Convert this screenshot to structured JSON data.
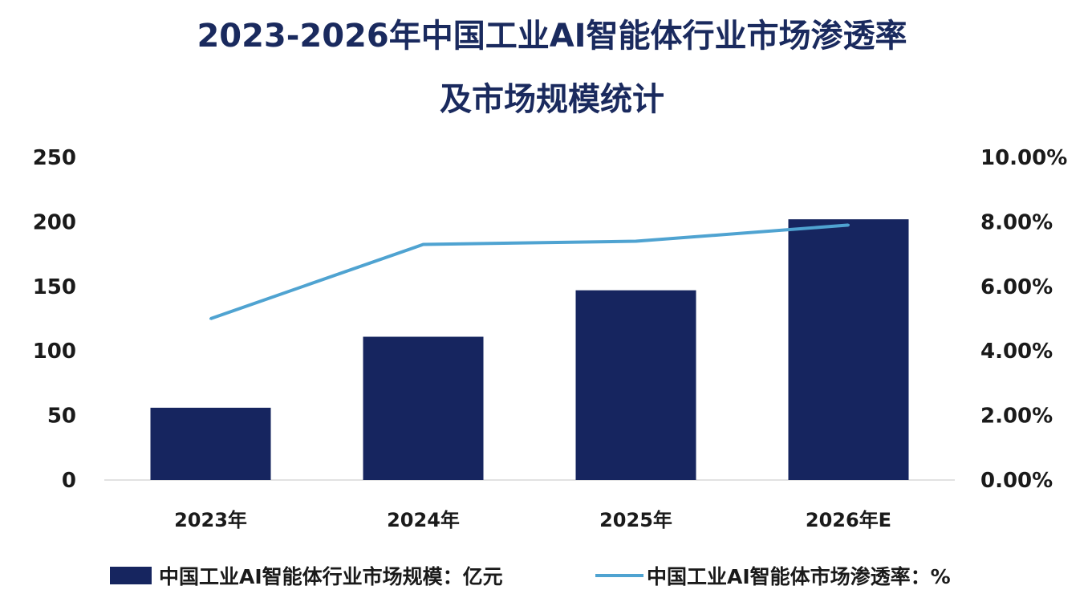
{
  "chart_data": {
    "type": "bar",
    "title_line1": "2023-2026年中国工业AI智能体行业市场渗透率",
    "title_line2": "及市场规模统计",
    "categories": [
      "2023年",
      "2024年",
      "2025年",
      "2026年E"
    ],
    "series": [
      {
        "name": "中国工业AI智能体行业市场规模：亿元",
        "type": "bar",
        "axis": "left",
        "values": [
          56,
          111,
          147,
          202
        ],
        "color": "#16255f"
      },
      {
        "name": "中国工业AI智能体市场渗透率：%",
        "type": "line",
        "axis": "right",
        "values": [
          5.0,
          7.3,
          7.4,
          7.9
        ],
        "color": "#4fa3d1"
      }
    ],
    "y_left": {
      "min": 0,
      "max": 250,
      "ticks": [
        "250",
        "200",
        "150",
        "100",
        "50",
        "0"
      ]
    },
    "y_right": {
      "min": 0,
      "max": 10,
      "ticks": [
        "10.00%",
        "8.00%",
        "6.00%",
        "4.00%",
        "2.00%",
        "0.00%"
      ]
    },
    "grid": false,
    "legend_position": "bottom"
  }
}
